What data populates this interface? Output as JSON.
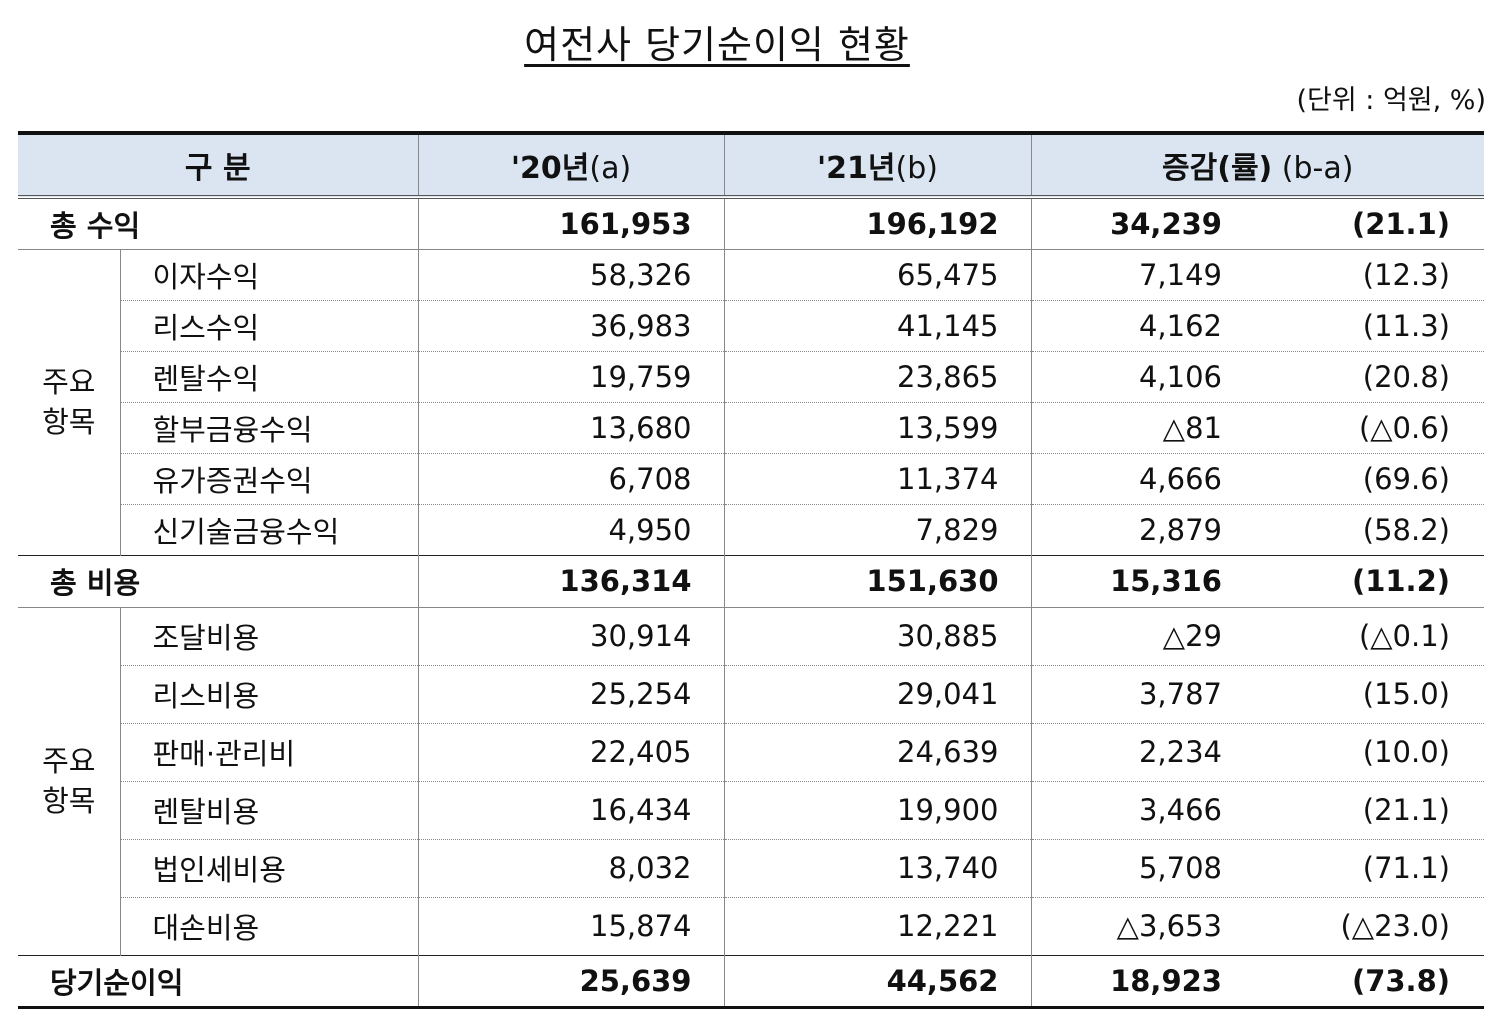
{
  "title": "여전사 당기순이익 현황",
  "unit": "(단위 : 억원, %)",
  "header": {
    "category": "구 분",
    "y2020": "'20년",
    "y2020_suffix": "(a)",
    "y2021": "'21년",
    "y2021_suffix": "(b)",
    "change": "증감(률)",
    "change_suffix": " (b-a)"
  },
  "header_bg": "#dbe5f1",
  "revenue": {
    "total": {
      "label": "총 수익",
      "a": "161,953",
      "b": "196,192",
      "diff": "34,239",
      "rate": "(21.1)"
    },
    "group_label_1": "주요",
    "group_label_2": "항목",
    "items": [
      {
        "label": "이자수익",
        "a": "58,326",
        "b": "65,475",
        "diff": "7,149",
        "rate": "(12.3)"
      },
      {
        "label": "리스수익",
        "a": "36,983",
        "b": "41,145",
        "diff": "4,162",
        "rate": "(11.3)"
      },
      {
        "label": "렌탈수익",
        "a": "19,759",
        "b": "23,865",
        "diff": "4,106",
        "rate": "(20.8)"
      },
      {
        "label": "할부금융수익",
        "a": "13,680",
        "b": "13,599",
        "diff": "△81",
        "rate": "(△0.6)"
      },
      {
        "label": "유가증권수익",
        "a": "6,708",
        "b": "11,374",
        "diff": "4,666",
        "rate": "(69.6)"
      },
      {
        "label": "신기술금융수익",
        "a": "4,950",
        "b": "7,829",
        "diff": "2,879",
        "rate": "(58.2)"
      }
    ]
  },
  "expense": {
    "total": {
      "label": "총 비용",
      "a": "136,314",
      "b": "151,630",
      "diff": "15,316",
      "rate": "(11.2)"
    },
    "group_label_1": "주요",
    "group_label_2": "항목",
    "items": [
      {
        "label": "조달비용",
        "a": "30,914",
        "b": "30,885",
        "diff": "△29",
        "rate": "(△0.1)"
      },
      {
        "label": "리스비용",
        "a": "25,254",
        "b": "29,041",
        "diff": "3,787",
        "rate": "(15.0)"
      },
      {
        "label": "판매·관리비",
        "a": "22,405",
        "b": "24,639",
        "diff": "2,234",
        "rate": "(10.0)"
      },
      {
        "label": "렌탈비용",
        "a": "16,434",
        "b": "19,900",
        "diff": "3,466",
        "rate": "(21.1)"
      },
      {
        "label": "법인세비용",
        "a": "8,032",
        "b": "13,740",
        "diff": "5,708",
        "rate": "(71.1)"
      },
      {
        "label": "대손비용",
        "a": "15,874",
        "b": "12,221",
        "diff": "△3,653",
        "rate": "(△23.0)"
      }
    ]
  },
  "net_income": {
    "label": "당기순이익",
    "a": "25,639",
    "b": "44,562",
    "diff": "18,923",
    "rate": "(73.8)"
  }
}
